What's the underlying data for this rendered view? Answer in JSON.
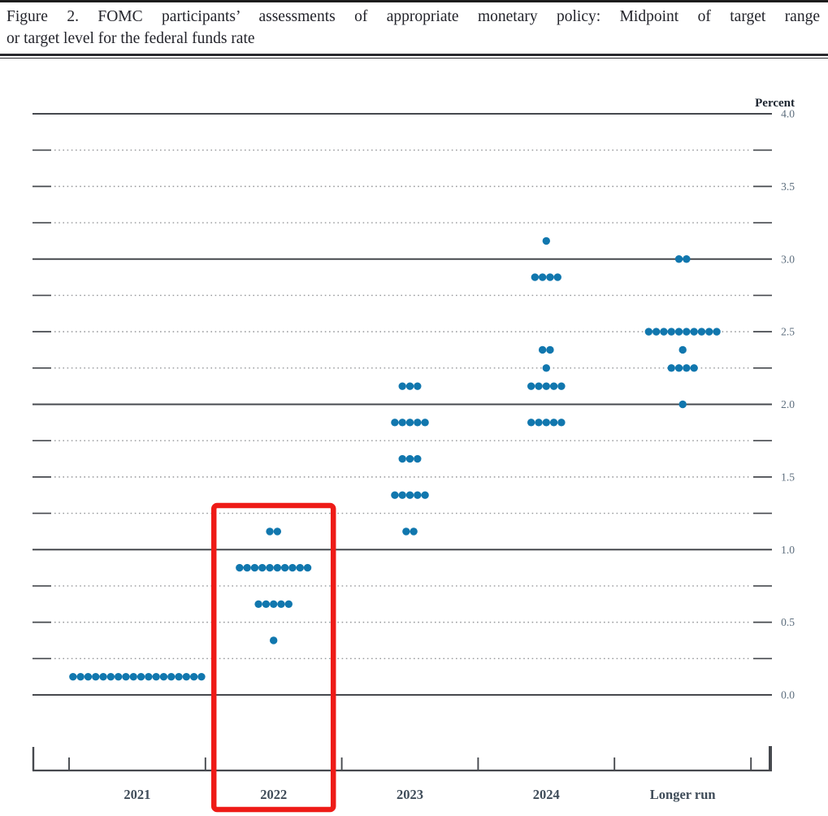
{
  "title": {
    "line1": "Figure 2.  FOMC participants’ assessments of appropriate monetary policy:  Midpoint of target range",
    "line2": "or target level for the federal funds rate"
  },
  "chart_data": {
    "type": "scatter",
    "title": "FOMC participants’ assessments of appropriate monetary policy: Midpoint of target range or target level for the federal funds rate",
    "ylabel": "Percent",
    "ylim": [
      0.0,
      4.0
    ],
    "y_minor_step": 0.25,
    "y_tick_labels": [
      "4.0",
      "3.5",
      "3.0",
      "2.5",
      "2.0",
      "1.5",
      "1.0",
      "0.5",
      "0.0"
    ],
    "grid": "solid lines at integers, dotted lines at quarter points",
    "categories": [
      "2021",
      "2022",
      "2023",
      "2024",
      "Longer run"
    ],
    "dots": [
      {
        "category": "2021",
        "rate": 0.125,
        "count": 18
      },
      {
        "category": "2022",
        "rate": 0.375,
        "count": 1
      },
      {
        "category": "2022",
        "rate": 0.625,
        "count": 5
      },
      {
        "category": "2022",
        "rate": 0.875,
        "count": 10
      },
      {
        "category": "2022",
        "rate": 1.125,
        "count": 2
      },
      {
        "category": "2023",
        "rate": 1.125,
        "count": 2
      },
      {
        "category": "2023",
        "rate": 1.375,
        "count": 5
      },
      {
        "category": "2023",
        "rate": 1.625,
        "count": 3
      },
      {
        "category": "2023",
        "rate": 1.875,
        "count": 5
      },
      {
        "category": "2023",
        "rate": 2.125,
        "count": 3
      },
      {
        "category": "2024",
        "rate": 1.875,
        "count": 5
      },
      {
        "category": "2024",
        "rate": 2.125,
        "count": 5
      },
      {
        "category": "2024",
        "rate": 2.25,
        "count": 1
      },
      {
        "category": "2024",
        "rate": 2.375,
        "count": 2
      },
      {
        "category": "2024",
        "rate": 2.875,
        "count": 4
      },
      {
        "category": "2024",
        "rate": 3.125,
        "count": 1
      },
      {
        "category": "Longer run",
        "rate": 2.0,
        "count": 1
      },
      {
        "category": "Longer run",
        "rate": 2.25,
        "count": 4
      },
      {
        "category": "Longer run",
        "rate": 2.375,
        "count": 1
      },
      {
        "category": "Longer run",
        "rate": 2.5,
        "count": 10
      },
      {
        "category": "Longer run",
        "rate": 3.0,
        "count": 2
      }
    ],
    "dot_color": "#1177ae",
    "highlight": {
      "category": "2022",
      "color": "#ee1b17"
    },
    "colors": {
      "grid_solid": "#46494e",
      "grid_dotted": "#96989b",
      "axis": "#46494e",
      "tick_label": "#5d6e7e",
      "x_label": "#3f4c59",
      "percent_label": "#1d2530"
    }
  }
}
